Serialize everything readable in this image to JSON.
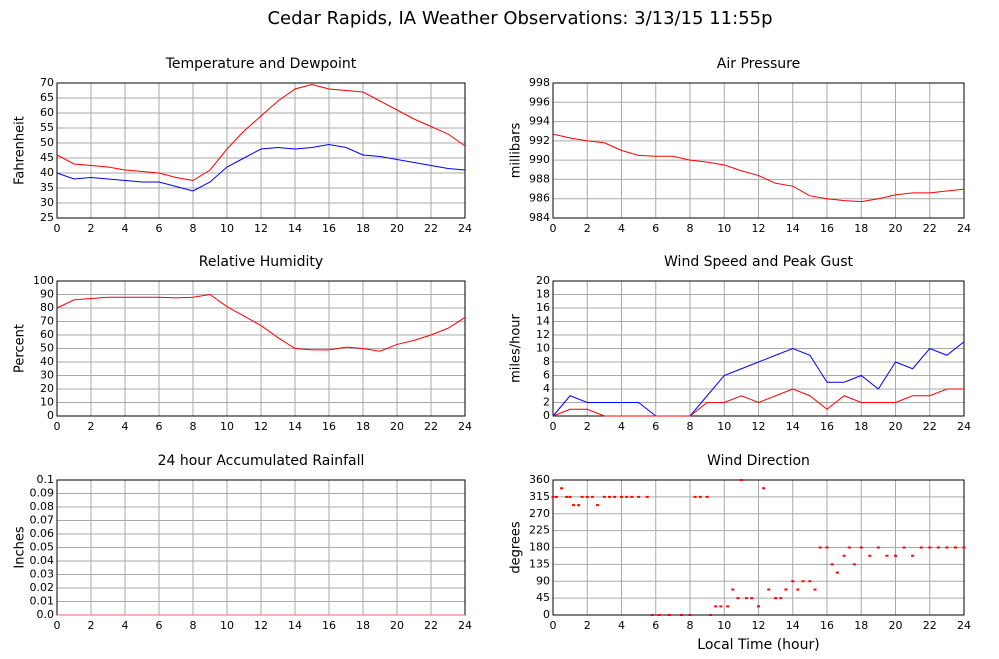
{
  "title": "Cedar Rapids, IA Weather Observations: 3/13/15 11:55p",
  "chart_data": [
    {
      "type": "line",
      "title": "Temperature and Dewpoint",
      "ylabel": "Fahrenheit",
      "x": [
        0,
        1,
        2,
        3,
        4,
        5,
        6,
        7,
        8,
        9,
        10,
        11,
        12,
        13,
        14,
        15,
        16,
        17,
        18,
        19,
        20,
        21,
        22,
        23,
        24
      ],
      "series": [
        {
          "color": "#ff0000",
          "values": [
            46,
            43,
            42.5,
            42,
            41,
            40.5,
            40,
            38.5,
            37.5,
            41,
            48,
            54,
            59,
            64,
            68,
            69.5,
            68,
            67.5,
            67,
            64,
            61,
            58,
            55.5,
            53,
            49
          ]
        },
        {
          "color": "#0000ff",
          "values": [
            40,
            38,
            38.5,
            38,
            37.5,
            37,
            37,
            35.5,
            34,
            37,
            42,
            45,
            48,
            48.5,
            48,
            48.5,
            49.5,
            48.5,
            46,
            45.5,
            44.5,
            43.5,
            42.5,
            41.5,
            41
          ]
        }
      ],
      "xlim": [
        0,
        24
      ],
      "xticks": [
        0,
        2,
        4,
        6,
        8,
        10,
        12,
        14,
        16,
        18,
        20,
        22,
        24
      ],
      "ylim": [
        25,
        70
      ],
      "yticks": [
        25,
        30,
        35,
        40,
        45,
        50,
        55,
        60,
        65,
        70
      ],
      "grid": true
    },
    {
      "type": "line",
      "title": "Air Pressure",
      "ylabel": "millibars",
      "x": [
        0,
        1,
        2,
        3,
        4,
        5,
        6,
        7,
        8,
        9,
        10,
        11,
        12,
        13,
        14,
        15,
        16,
        17,
        18,
        19,
        20,
        21,
        22,
        23,
        24
      ],
      "series": [
        {
          "color": "#ff0000",
          "values": [
            992.7,
            992.3,
            992,
            991.8,
            991,
            990.5,
            990.4,
            990.4,
            990,
            989.8,
            989.5,
            988.9,
            988.4,
            987.6,
            987.3,
            986.3,
            986,
            985.8,
            985.7,
            986,
            986.4,
            986.6,
            986.6,
            986.8,
            987
          ]
        }
      ],
      "xlim": [
        0,
        24
      ],
      "xticks": [
        0,
        2,
        4,
        6,
        8,
        10,
        12,
        14,
        16,
        18,
        20,
        22,
        24
      ],
      "ylim": [
        984,
        998
      ],
      "yticks": [
        984,
        986,
        988,
        990,
        992,
        994,
        996,
        998
      ],
      "grid": true
    },
    {
      "type": "line",
      "title": "Relative Humidity",
      "ylabel": "Percent",
      "x": [
        0,
        1,
        2,
        3,
        4,
        5,
        6,
        7,
        8,
        9,
        10,
        11,
        12,
        13,
        14,
        15,
        16,
        17,
        18,
        19,
        20,
        21,
        22,
        23,
        24
      ],
      "series": [
        {
          "color": "#ff0000",
          "values": [
            80,
            86,
            87,
            88,
            88,
            88,
            88,
            87.5,
            88,
            90,
            81,
            74,
            67,
            58,
            50,
            49,
            49,
            51,
            50,
            48,
            53,
            56,
            60,
            65,
            73
          ]
        }
      ],
      "xlim": [
        0,
        24
      ],
      "xticks": [
        0,
        2,
        4,
        6,
        8,
        10,
        12,
        14,
        16,
        18,
        20,
        22,
        24
      ],
      "ylim": [
        0,
        100
      ],
      "yticks": [
        0,
        10,
        20,
        30,
        40,
        50,
        60,
        70,
        80,
        90,
        100
      ],
      "grid": true
    },
    {
      "type": "line",
      "title": "Wind Speed and Peak Gust",
      "ylabel": "miles/hour",
      "x": [
        0,
        1,
        2,
        3,
        4,
        5,
        6,
        7,
        8,
        9,
        10,
        11,
        12,
        13,
        14,
        15,
        16,
        17,
        18,
        19,
        20,
        21,
        22,
        23,
        24
      ],
      "series": [
        {
          "color": "#0000ff",
          "values": [
            0,
            3,
            2,
            2,
            2,
            2,
            0,
            0,
            0,
            3,
            6,
            7,
            8,
            9,
            10,
            9,
            5,
            5,
            6,
            4,
            8,
            7,
            10,
            9,
            11
          ]
        },
        {
          "color": "#ff0000",
          "values": [
            0,
            1,
            1,
            0,
            0,
            0,
            0,
            0,
            0,
            2,
            2,
            3,
            2,
            3,
            4,
            3,
            1,
            3,
            2,
            2,
            2,
            3,
            3,
            4,
            4
          ]
        }
      ],
      "xlim": [
        0,
        24
      ],
      "xticks": [
        0,
        2,
        4,
        6,
        8,
        10,
        12,
        14,
        16,
        18,
        20,
        22,
        24
      ],
      "ylim": [
        0,
        20
      ],
      "yticks": [
        0,
        2,
        4,
        6,
        8,
        10,
        12,
        14,
        16,
        18,
        20
      ],
      "grid": true
    },
    {
      "type": "line",
      "title": "24 hour Accumulated Rainfall",
      "ylabel": "Inches",
      "x": [
        0,
        1,
        2,
        3,
        4,
        5,
        6,
        7,
        8,
        9,
        10,
        11,
        12,
        13,
        14,
        15,
        16,
        17,
        18,
        19,
        20,
        21,
        22,
        23,
        24
      ],
      "series": [
        {
          "color": "#ff6060",
          "values": [
            0,
            0,
            0,
            0,
            0,
            0,
            0,
            0,
            0,
            0,
            0,
            0,
            0,
            0,
            0,
            0,
            0,
            0,
            0,
            0,
            0,
            0,
            0,
            0,
            0
          ]
        }
      ],
      "xlim": [
        0,
        24
      ],
      "xticks": [
        0,
        2,
        4,
        6,
        8,
        10,
        12,
        14,
        16,
        18,
        20,
        22,
        24
      ],
      "ylim": [
        0,
        0.1
      ],
      "yticks": [
        {
          "value": 0,
          "label": "0.0"
        },
        0.01,
        0.02,
        0.03,
        0.04,
        0.05,
        0.06,
        0.07,
        0.08,
        0.09,
        0.1
      ],
      "grid": true
    },
    {
      "type": "scatter",
      "title": "Wind Direction",
      "ylabel": "degrees",
      "xlabel": "Local Time (hour)",
      "x": [
        0,
        0.2,
        0.5,
        0.8,
        1,
        1.2,
        1.5,
        1.7,
        2,
        2.3,
        2.6,
        3,
        3.3,
        3.6,
        4,
        4.3,
        4.6,
        5,
        5.5,
        5.8,
        6.2,
        6.8,
        7.5,
        8,
        8.3,
        8.6,
        9,
        9.2,
        9.5,
        9.8,
        10.2,
        10.5,
        10.8,
        11,
        11.3,
        11.6,
        12,
        12.3,
        12.6,
        13,
        13.3,
        13.6,
        14,
        14.3,
        14.6,
        15,
        15.3,
        15.6,
        16,
        16.3,
        16.6,
        17,
        17.3,
        17.6,
        18,
        18.5,
        19,
        19.5,
        20,
        20.5,
        21,
        21.5,
        22,
        22.5,
        23,
        23.5,
        24
      ],
      "series": [
        {
          "color": "#ff0000",
          "values": [
            315,
            315,
            338,
            315,
            315,
            293,
            293,
            315,
            315,
            315,
            293,
            315,
            315,
            315,
            315,
            315,
            315,
            315,
            315,
            0,
            0,
            0,
            0,
            0,
            315,
            315,
            315,
            0,
            23,
            23,
            23,
            68,
            45,
            360,
            45,
            45,
            23,
            338,
            68,
            45,
            45,
            68,
            90,
            68,
            90,
            90,
            68,
            180,
            180,
            135,
            113,
            158,
            180,
            135,
            180,
            158,
            180,
            158,
            158,
            180,
            158,
            180,
            180,
            180,
            180,
            180,
            180
          ]
        }
      ],
      "xlim": [
        0,
        24
      ],
      "xticks": [
        0,
        2,
        4,
        6,
        8,
        10,
        12,
        14,
        16,
        18,
        20,
        22,
        24
      ],
      "ylim": [
        0,
        360
      ],
      "yticks": [
        0,
        45,
        90,
        135,
        180,
        225,
        270,
        315,
        360
      ],
      "grid": true
    }
  ]
}
